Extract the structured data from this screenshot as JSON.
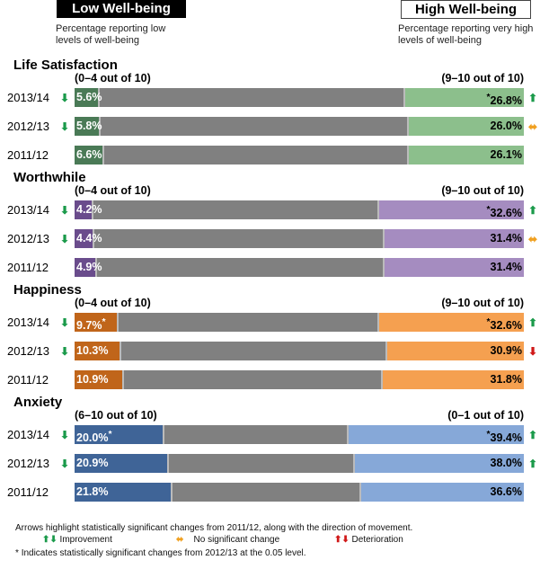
{
  "header": {
    "low_label": "Low Well-being",
    "high_label": "High Well-being",
    "low_desc": "Percentage reporting low levels of well-being",
    "high_desc": "Percentage reporting very high levels of well-being"
  },
  "colors": {
    "bar_mid": "#808080",
    "improve": "#1a9a4a",
    "no_change": "#f0a020",
    "deteriorate": "#d01818"
  },
  "chart_data": {
    "type": "bar",
    "subtype": "stacked-horizontal",
    "sections": [
      {
        "title": "Life Satisfaction",
        "low_range": "(0–4 out of 10)",
        "high_range": "(9–10 out of 10)",
        "low_color": "#4a7a56",
        "high_color": "#8cbf8c",
        "rows": [
          {
            "year": "2013/14",
            "low": 5.6,
            "low_label": "5.6%",
            "high": 26.8,
            "high_label": "26.8%",
            "low_arrow": "improve-down",
            "high_arrow": "improve-up",
            "low_star": false,
            "high_star": true
          },
          {
            "year": "2012/13",
            "low": 5.8,
            "low_label": "5.8%",
            "high": 26.0,
            "high_label": "26.0%",
            "low_arrow": "improve-down",
            "high_arrow": "no-change",
            "low_star": false,
            "high_star": false
          },
          {
            "year": "2011/12",
            "low": 6.6,
            "low_label": "6.6%",
            "high": 26.1,
            "high_label": "26.1%",
            "low_arrow": "",
            "high_arrow": "",
            "low_star": false,
            "high_star": false
          }
        ]
      },
      {
        "title": "Worthwhile",
        "low_range": "(0–4 out of 10)",
        "high_range": "(9–10 out of 10)",
        "low_color": "#6a4c8c",
        "high_color": "#a58cc0",
        "rows": [
          {
            "year": "2013/14",
            "low": 4.2,
            "low_label": "4.2%",
            "high": 32.6,
            "high_label": "32.6%",
            "low_arrow": "improve-down",
            "high_arrow": "improve-up",
            "low_star": false,
            "high_star": true
          },
          {
            "year": "2012/13",
            "low": 4.4,
            "low_label": "4.4%",
            "high": 31.4,
            "high_label": "31.4%",
            "low_arrow": "improve-down",
            "high_arrow": "no-change",
            "low_star": false,
            "high_star": false
          },
          {
            "year": "2011/12",
            "low": 4.9,
            "low_label": "4.9%",
            "high": 31.4,
            "high_label": "31.4%",
            "low_arrow": "",
            "high_arrow": "",
            "low_star": false,
            "high_star": false
          }
        ]
      },
      {
        "title": "Happiness",
        "low_range": "(0–4 out of 10)",
        "high_range": "(9–10 out of 10)",
        "low_color": "#c0651a",
        "high_color": "#f5a050",
        "rows": [
          {
            "year": "2013/14",
            "low": 9.7,
            "low_label": "9.7%",
            "high": 32.6,
            "high_label": "32.6%",
            "low_arrow": "improve-down",
            "high_arrow": "improve-up",
            "low_star": true,
            "high_star": true
          },
          {
            "year": "2012/13",
            "low": 10.3,
            "low_label": "10.3%",
            "high": 30.9,
            "high_label": "30.9%",
            "low_arrow": "improve-down",
            "high_arrow": "deteriorate-down",
            "low_star": false,
            "high_star": false
          },
          {
            "year": "2011/12",
            "low": 10.9,
            "low_label": "10.9%",
            "high": 31.8,
            "high_label": "31.8%",
            "low_arrow": "",
            "high_arrow": "",
            "low_star": false,
            "high_star": false
          }
        ]
      },
      {
        "title": "Anxiety",
        "low_range": "(6–10 out of 10)",
        "high_range": "(0–1 out of 10)",
        "low_color": "#3f6497",
        "high_color": "#86a8d8",
        "rows": [
          {
            "year": "2013/14",
            "low": 20.0,
            "low_label": "20.0%",
            "high": 39.4,
            "high_label": "39.4%",
            "low_arrow": "improve-down",
            "high_arrow": "improve-up",
            "low_star": true,
            "high_star": true
          },
          {
            "year": "2012/13",
            "low": 20.9,
            "low_label": "20.9%",
            "high": 38.0,
            "high_label": "38.0%",
            "low_arrow": "improve-down",
            "high_arrow": "improve-up",
            "low_star": false,
            "high_star": false
          },
          {
            "year": "2011/12",
            "low": 21.8,
            "low_label": "21.8%",
            "high": 36.6,
            "high_label": "36.6%",
            "low_arrow": "",
            "high_arrow": "",
            "low_star": false,
            "high_star": false
          }
        ]
      }
    ]
  },
  "footer": {
    "note1": "Arrows highlight statistically significant changes from 2011/12, along with the direction of movement.",
    "improvement": "Improvement",
    "no_change": "No significant change",
    "deterioration": "Deterioration",
    "note2": "Indicates statistically significant changes from 2012/13 at the 0.05 level.",
    "star": "*"
  }
}
